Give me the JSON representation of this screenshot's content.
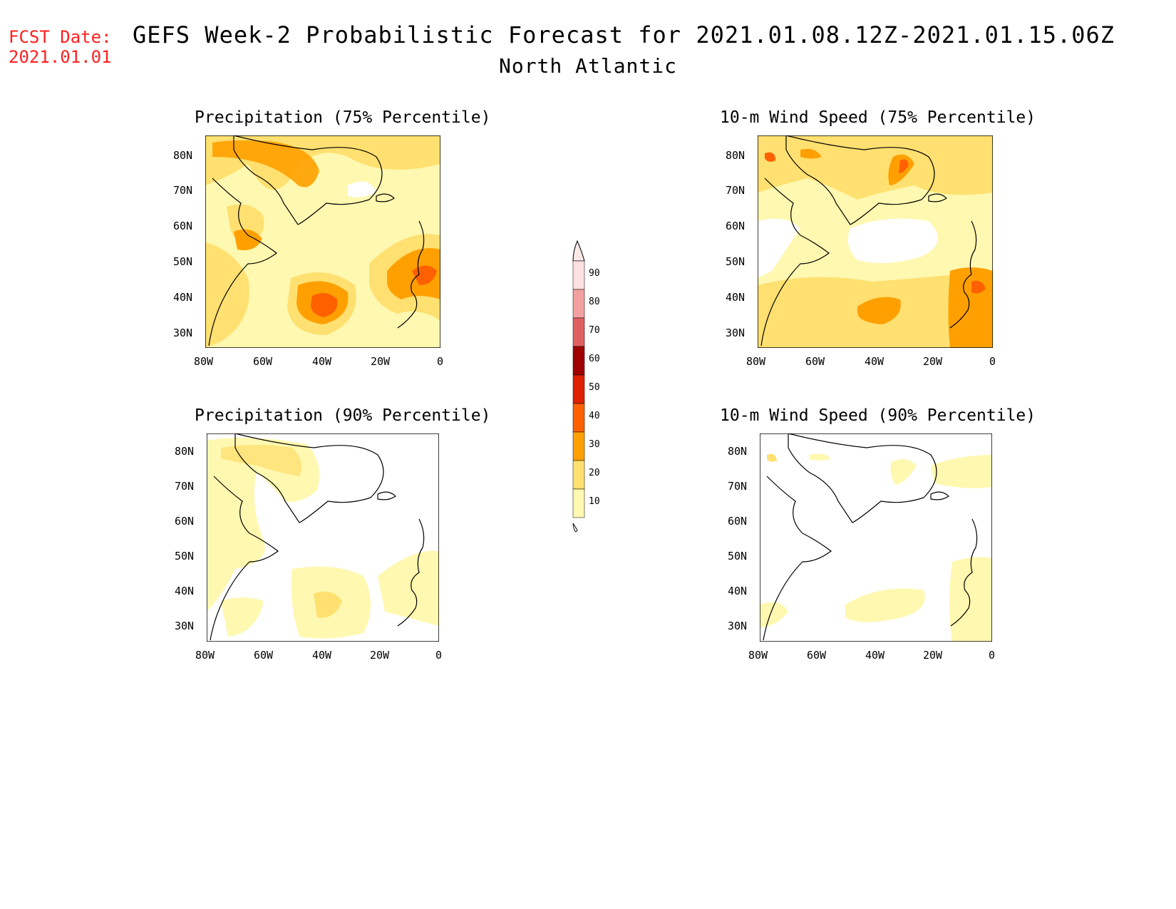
{
  "header": {
    "fcst_label": "FCST Date:",
    "fcst_date": "2021.01.01",
    "title": "GEFS Week-2 Probabilistic Forecast for 2021.01.08.12Z-2021.01.15.06Z",
    "subtitle": "North Atlantic"
  },
  "panels": [
    {
      "title": "Precipitation (75% Percentile)"
    },
    {
      "title": "10-m Wind Speed (75% Percentile)"
    },
    {
      "title": "Precipitation (90% Percentile)"
    },
    {
      "title": "10-m Wind Speed (90% Percentile)"
    }
  ],
  "axes": {
    "lon_labels": [
      "80W",
      "60W",
      "40W",
      "20W",
      "0"
    ],
    "lat_labels": [
      "80N",
      "70N",
      "60N",
      "50N",
      "40N",
      "30N"
    ]
  },
  "colorbar": {
    "levels": [
      "90",
      "80",
      "70",
      "60",
      "50",
      "40",
      "30",
      "20",
      "10"
    ],
    "colors": [
      "#fde0e0",
      "#f2a0a0",
      "#e06060",
      "#a00000",
      "#e02000",
      "#ff6000",
      "#ffa000",
      "#ffe070",
      "#fff8b0"
    ]
  }
}
